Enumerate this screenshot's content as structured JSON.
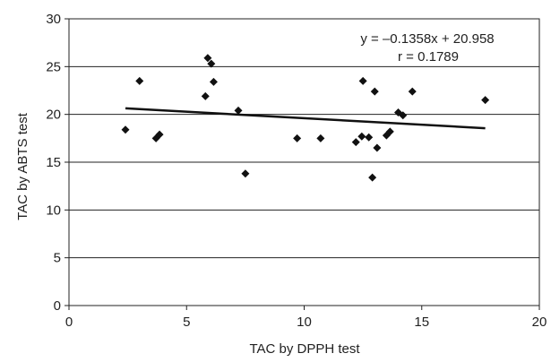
{
  "chart_data": {
    "type": "scatter",
    "title": "",
    "xlabel": "TAC by DPPH test",
    "ylabel": "TAC by ABTS test",
    "xlim": [
      0,
      20
    ],
    "ylim": [
      0,
      30
    ],
    "x_ticks": [
      "0",
      "5",
      "10",
      "15",
      "20"
    ],
    "y_ticks": [
      "0",
      "5",
      "10",
      "15",
      "20",
      "25",
      "30"
    ],
    "grid": "horizontal",
    "legend": "none",
    "annotations": {
      "equation": "y = –0.1358x + 20.958",
      "r": "r = 0.1789"
    },
    "points": [
      {
        "x": 2.4,
        "y": 18.4
      },
      {
        "x": 3.0,
        "y": 23.5
      },
      {
        "x": 3.7,
        "y": 17.5
      },
      {
        "x": 3.85,
        "y": 17.9
      },
      {
        "x": 5.8,
        "y": 21.9
      },
      {
        "x": 5.9,
        "y": 25.9
      },
      {
        "x": 6.05,
        "y": 25.3
      },
      {
        "x": 6.15,
        "y": 23.4
      },
      {
        "x": 7.2,
        "y": 20.4
      },
      {
        "x": 7.5,
        "y": 13.8
      },
      {
        "x": 9.7,
        "y": 17.5
      },
      {
        "x": 10.7,
        "y": 17.5
      },
      {
        "x": 12.2,
        "y": 17.1
      },
      {
        "x": 12.45,
        "y": 17.7
      },
      {
        "x": 12.5,
        "y": 23.5
      },
      {
        "x": 12.75,
        "y": 17.6
      },
      {
        "x": 12.9,
        "y": 13.4
      },
      {
        "x": 13.0,
        "y": 22.4
      },
      {
        "x": 13.1,
        "y": 16.5
      },
      {
        "x": 13.5,
        "y": 17.8
      },
      {
        "x": 13.65,
        "y": 18.2
      },
      {
        "x": 14.0,
        "y": 20.2
      },
      {
        "x": 14.2,
        "y": 19.9
      },
      {
        "x": 14.6,
        "y": 22.4
      },
      {
        "x": 17.7,
        "y": 21.5
      }
    ],
    "trendline": {
      "slope": -0.1358,
      "intercept": 20.958,
      "x_range": [
        2.4,
        17.7
      ]
    },
    "colors": {
      "marker": "#111111",
      "trendline": "#111111",
      "grid": "#222222",
      "axis": "#222222"
    }
  }
}
